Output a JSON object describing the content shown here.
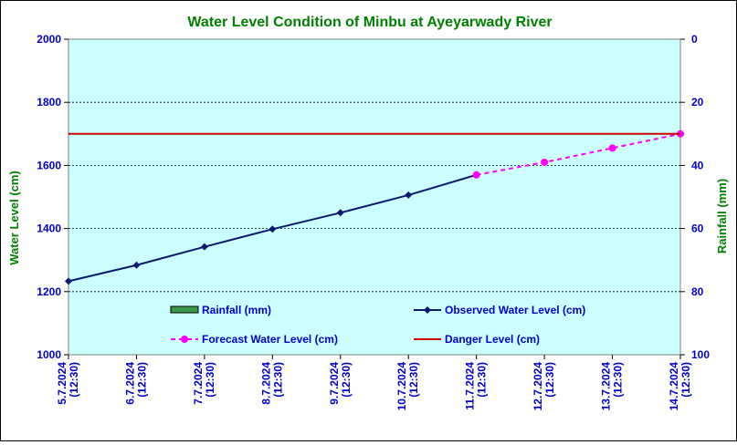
{
  "chart_data": {
    "type": "line",
    "title": "Water Level Condition of Minbu at Ayeyarwady River",
    "ylabel": "Water Level (cm)",
    "y2label": "Rainfall (mm)",
    "ylim": [
      1000,
      2000
    ],
    "y2lim": [
      0,
      100
    ],
    "y2_reversed": true,
    "yticks": [
      "1000",
      "1200",
      "1400",
      "1600",
      "1800",
      "2000"
    ],
    "y2ticks": [
      "0",
      "20",
      "40",
      "60",
      "80",
      "100"
    ],
    "categories": [
      [
        "5.7.2024",
        "(12:30)"
      ],
      [
        "6.7.2024",
        "(12:30)"
      ],
      [
        "7.7.2024",
        "(12:30)"
      ],
      [
        "8.7.2024",
        "(12:30)"
      ],
      [
        "9.7.2024",
        "(12:30)"
      ],
      [
        "10.7.2024",
        "(12:30)"
      ],
      [
        "11.7.2024",
        "(12:30)"
      ],
      [
        "12.7.2024",
        "(12:30)"
      ],
      [
        "13.7.2024",
        "(12:30)"
      ],
      [
        "14.7.2024",
        "(12:30)"
      ]
    ],
    "series": [
      {
        "name": "Rainfall (mm)",
        "kind": "bar",
        "axis": "right",
        "color": "#3c9b4a",
        "values": [
          null,
          null,
          null,
          null,
          null,
          null,
          null,
          null,
          null,
          null
        ]
      },
      {
        "name": "Observed Water Level (cm)",
        "kind": "line",
        "color": "#0a1a6e",
        "marker": "diamond",
        "values": [
          1233,
          1284,
          1342,
          1398,
          1450,
          1506,
          1570,
          null,
          null,
          null
        ]
      },
      {
        "name": "Forecast Water Level (cm)",
        "kind": "line",
        "dashed": true,
        "color": "#ff00ff",
        "marker": "circle",
        "values": [
          null,
          null,
          null,
          null,
          null,
          null,
          1570,
          1610,
          1655,
          1700
        ]
      },
      {
        "name": "Danger Level (cm)",
        "kind": "hline",
        "color": "#cc0000",
        "value": 1700
      }
    ],
    "grid": true,
    "legend": "inside-bottom",
    "colors": {
      "plot_background": "#ccffff",
      "title": "#008000",
      "axis_text": "#0000cc",
      "legend_text": "#0000cc"
    }
  }
}
